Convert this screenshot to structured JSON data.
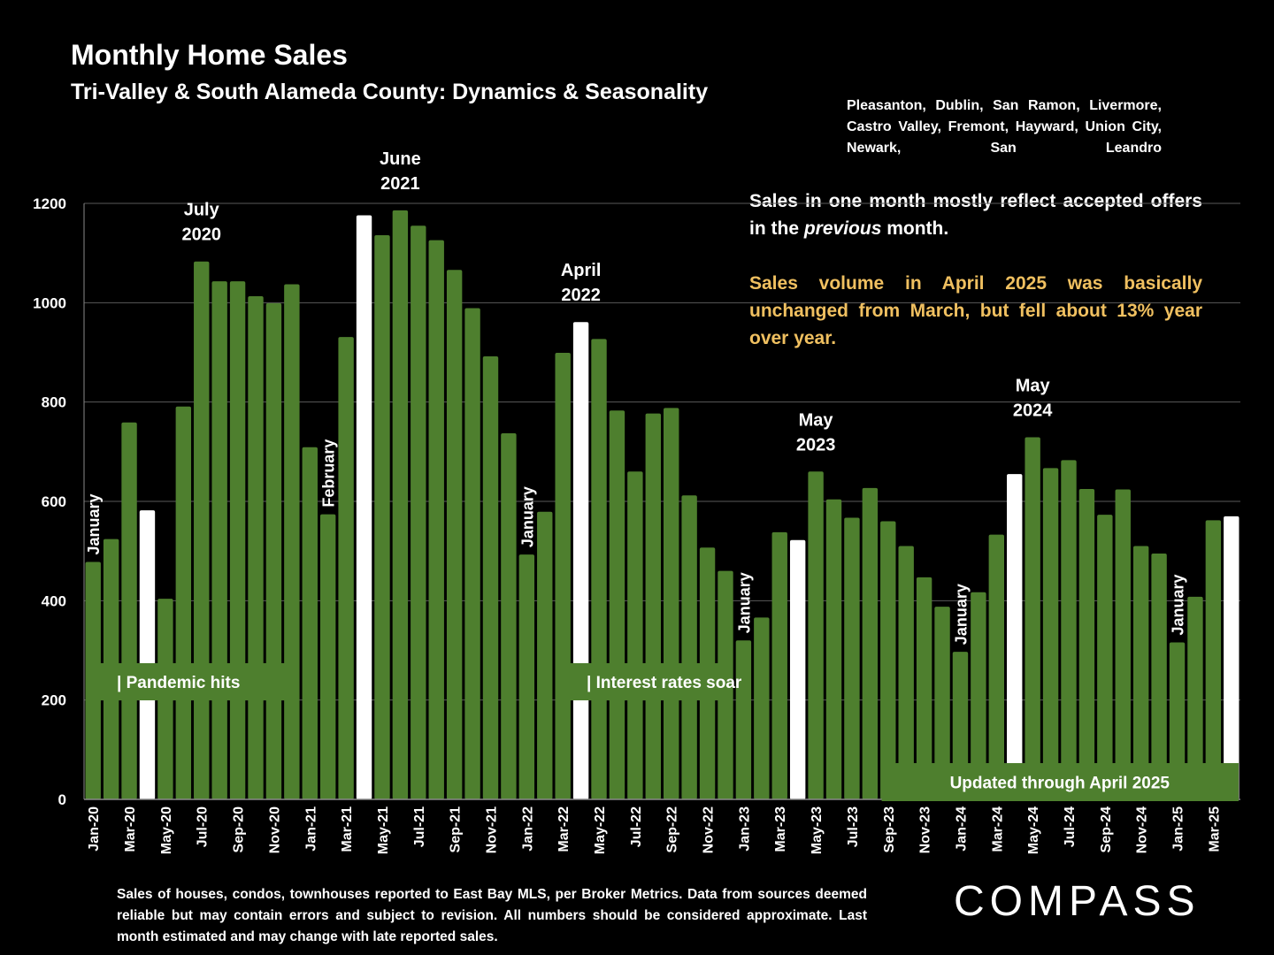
{
  "header": {
    "title": "Monthly Home Sales",
    "subtitle": "Tri-Valley & South Alameda County: Dynamics & Seasonality",
    "cities": "Pleasanton, Dublin, San Ramon, Livermore, Castro Valley, Fremont, Hayward, Union City, Newark, San Leandro"
  },
  "note": {
    "line1_a": "Sales in one month mostly reflect accepted offers in the ",
    "line1_em": "previous",
    "line1_b": " month.",
    "line2": "Sales volume in April 2025 was basically unchanged from March, but fell about 13% year over year."
  },
  "footer": "Sales of houses, condos, townhouses reported to East Bay MLS, per Broker Metrics. Data from sources deemed reliable but may contain errors and subject to revision. All numbers should be considered approximate.  Last month estimated and may change with late reported sales.",
  "logo": "COMPASS",
  "colors": {
    "bar": "#4e7f2e",
    "highlight": "#ffffff",
    "background": "#000000",
    "gold": "#f0c060"
  },
  "chart_data": {
    "type": "bar",
    "ylim": [
      0,
      1200
    ],
    "yticks": [
      0,
      200,
      400,
      600,
      800,
      1000,
      1200
    ],
    "categories": [
      "Jan-20",
      "Feb-20",
      "Mar-20",
      "Apr-20",
      "May-20",
      "Jun-20",
      "Jul-20",
      "Aug-20",
      "Sep-20",
      "Oct-20",
      "Nov-20",
      "Dec-20",
      "Jan-21",
      "Feb-21",
      "Mar-21",
      "Apr-21",
      "May-21",
      "Jun-21",
      "Jul-21",
      "Aug-21",
      "Sep-21",
      "Oct-21",
      "Nov-21",
      "Dec-21",
      "Jan-22",
      "Feb-22",
      "Mar-22",
      "Apr-22",
      "May-22",
      "Jun-22",
      "Jul-22",
      "Aug-22",
      "Sep-22",
      "Oct-22",
      "Nov-22",
      "Dec-22",
      "Jan-23",
      "Feb-23",
      "Mar-23",
      "Apr-23",
      "May-23",
      "Jun-23",
      "Jul-23",
      "Aug-23",
      "Sep-23",
      "Oct-23",
      "Nov-23",
      "Dec-23",
      "Jan-24",
      "Feb-24",
      "Mar-24",
      "Apr-24",
      "May-24",
      "Jun-24",
      "Jul-24",
      "Aug-24",
      "Sep-24",
      "Oct-24",
      "Nov-24",
      "Dec-24",
      "Jan-25",
      "Feb-25",
      "Mar-25",
      "Apr-25"
    ],
    "xtick_labels": [
      "Jan-20",
      "Mar-20",
      "May-20",
      "Jul-20",
      "Sep-20",
      "Nov-20",
      "Jan-21",
      "Mar-21",
      "May-21",
      "Jul-21",
      "Sep-21",
      "Nov-21",
      "Jan-22",
      "Mar-22",
      "May-22",
      "Jul-22",
      "Sep-22",
      "Nov-22",
      "Jan-23",
      "Mar-23",
      "May-23",
      "Jul-23",
      "Sep-23",
      "Nov-23",
      "Jan-24",
      "Mar-24",
      "May-24",
      "Jul-24",
      "Sep-24",
      "Nov-24",
      "Jan-25",
      "Mar-25"
    ],
    "values": [
      478,
      524,
      759,
      582,
      404,
      791,
      1083,
      1043,
      1043,
      1013,
      999,
      1037,
      709,
      574,
      931,
      1176,
      1136,
      1186,
      1155,
      1126,
      1066,
      989,
      892,
      737,
      493,
      579,
      899,
      961,
      927,
      783,
      660,
      777,
      788,
      612,
      507,
      460,
      320,
      366,
      538,
      522,
      660,
      604,
      567,
      627,
      560,
      510,
      447,
      388,
      297,
      417,
      533,
      655,
      729,
      667,
      683,
      625,
      573,
      624,
      510,
      495,
      316,
      408,
      562,
      570
    ],
    "highlighted": [
      "Apr-20",
      "Apr-21",
      "Apr-22",
      "Apr-23",
      "Apr-24",
      "Apr-25"
    ],
    "annotations": [
      {
        "text": "July 2020",
        "bar": "Jul-20"
      },
      {
        "text": "June 2021",
        "bar": "Jun-21"
      },
      {
        "text": "April 2022",
        "bar": "Apr-22"
      },
      {
        "text": "May 2023",
        "bar": "May-23"
      },
      {
        "text": "May 2024",
        "bar": "May-24"
      }
    ],
    "vertical_annotations": [
      {
        "text": "January",
        "bar": "Jan-20"
      },
      {
        "text": "February",
        "bar": "Feb-21"
      },
      {
        "text": "January",
        "bar": "Jan-22"
      },
      {
        "text": "January",
        "bar": "Jan-23"
      },
      {
        "text": "January",
        "bar": "Jan-24"
      },
      {
        "text": "January",
        "bar": "Jan-25"
      }
    ],
    "bands": [
      {
        "text": "| Pandemic hits",
        "from": "Jan-20",
        "to": "Dec-20"
      },
      {
        "text": "| Interest rates soar",
        "from": "Mar-22",
        "to": "Dec-22"
      },
      {
        "text": "Updated through April 2025",
        "from": "Sep-23",
        "to": "Apr-25"
      }
    ],
    "grid": true,
    "legend": "none"
  }
}
